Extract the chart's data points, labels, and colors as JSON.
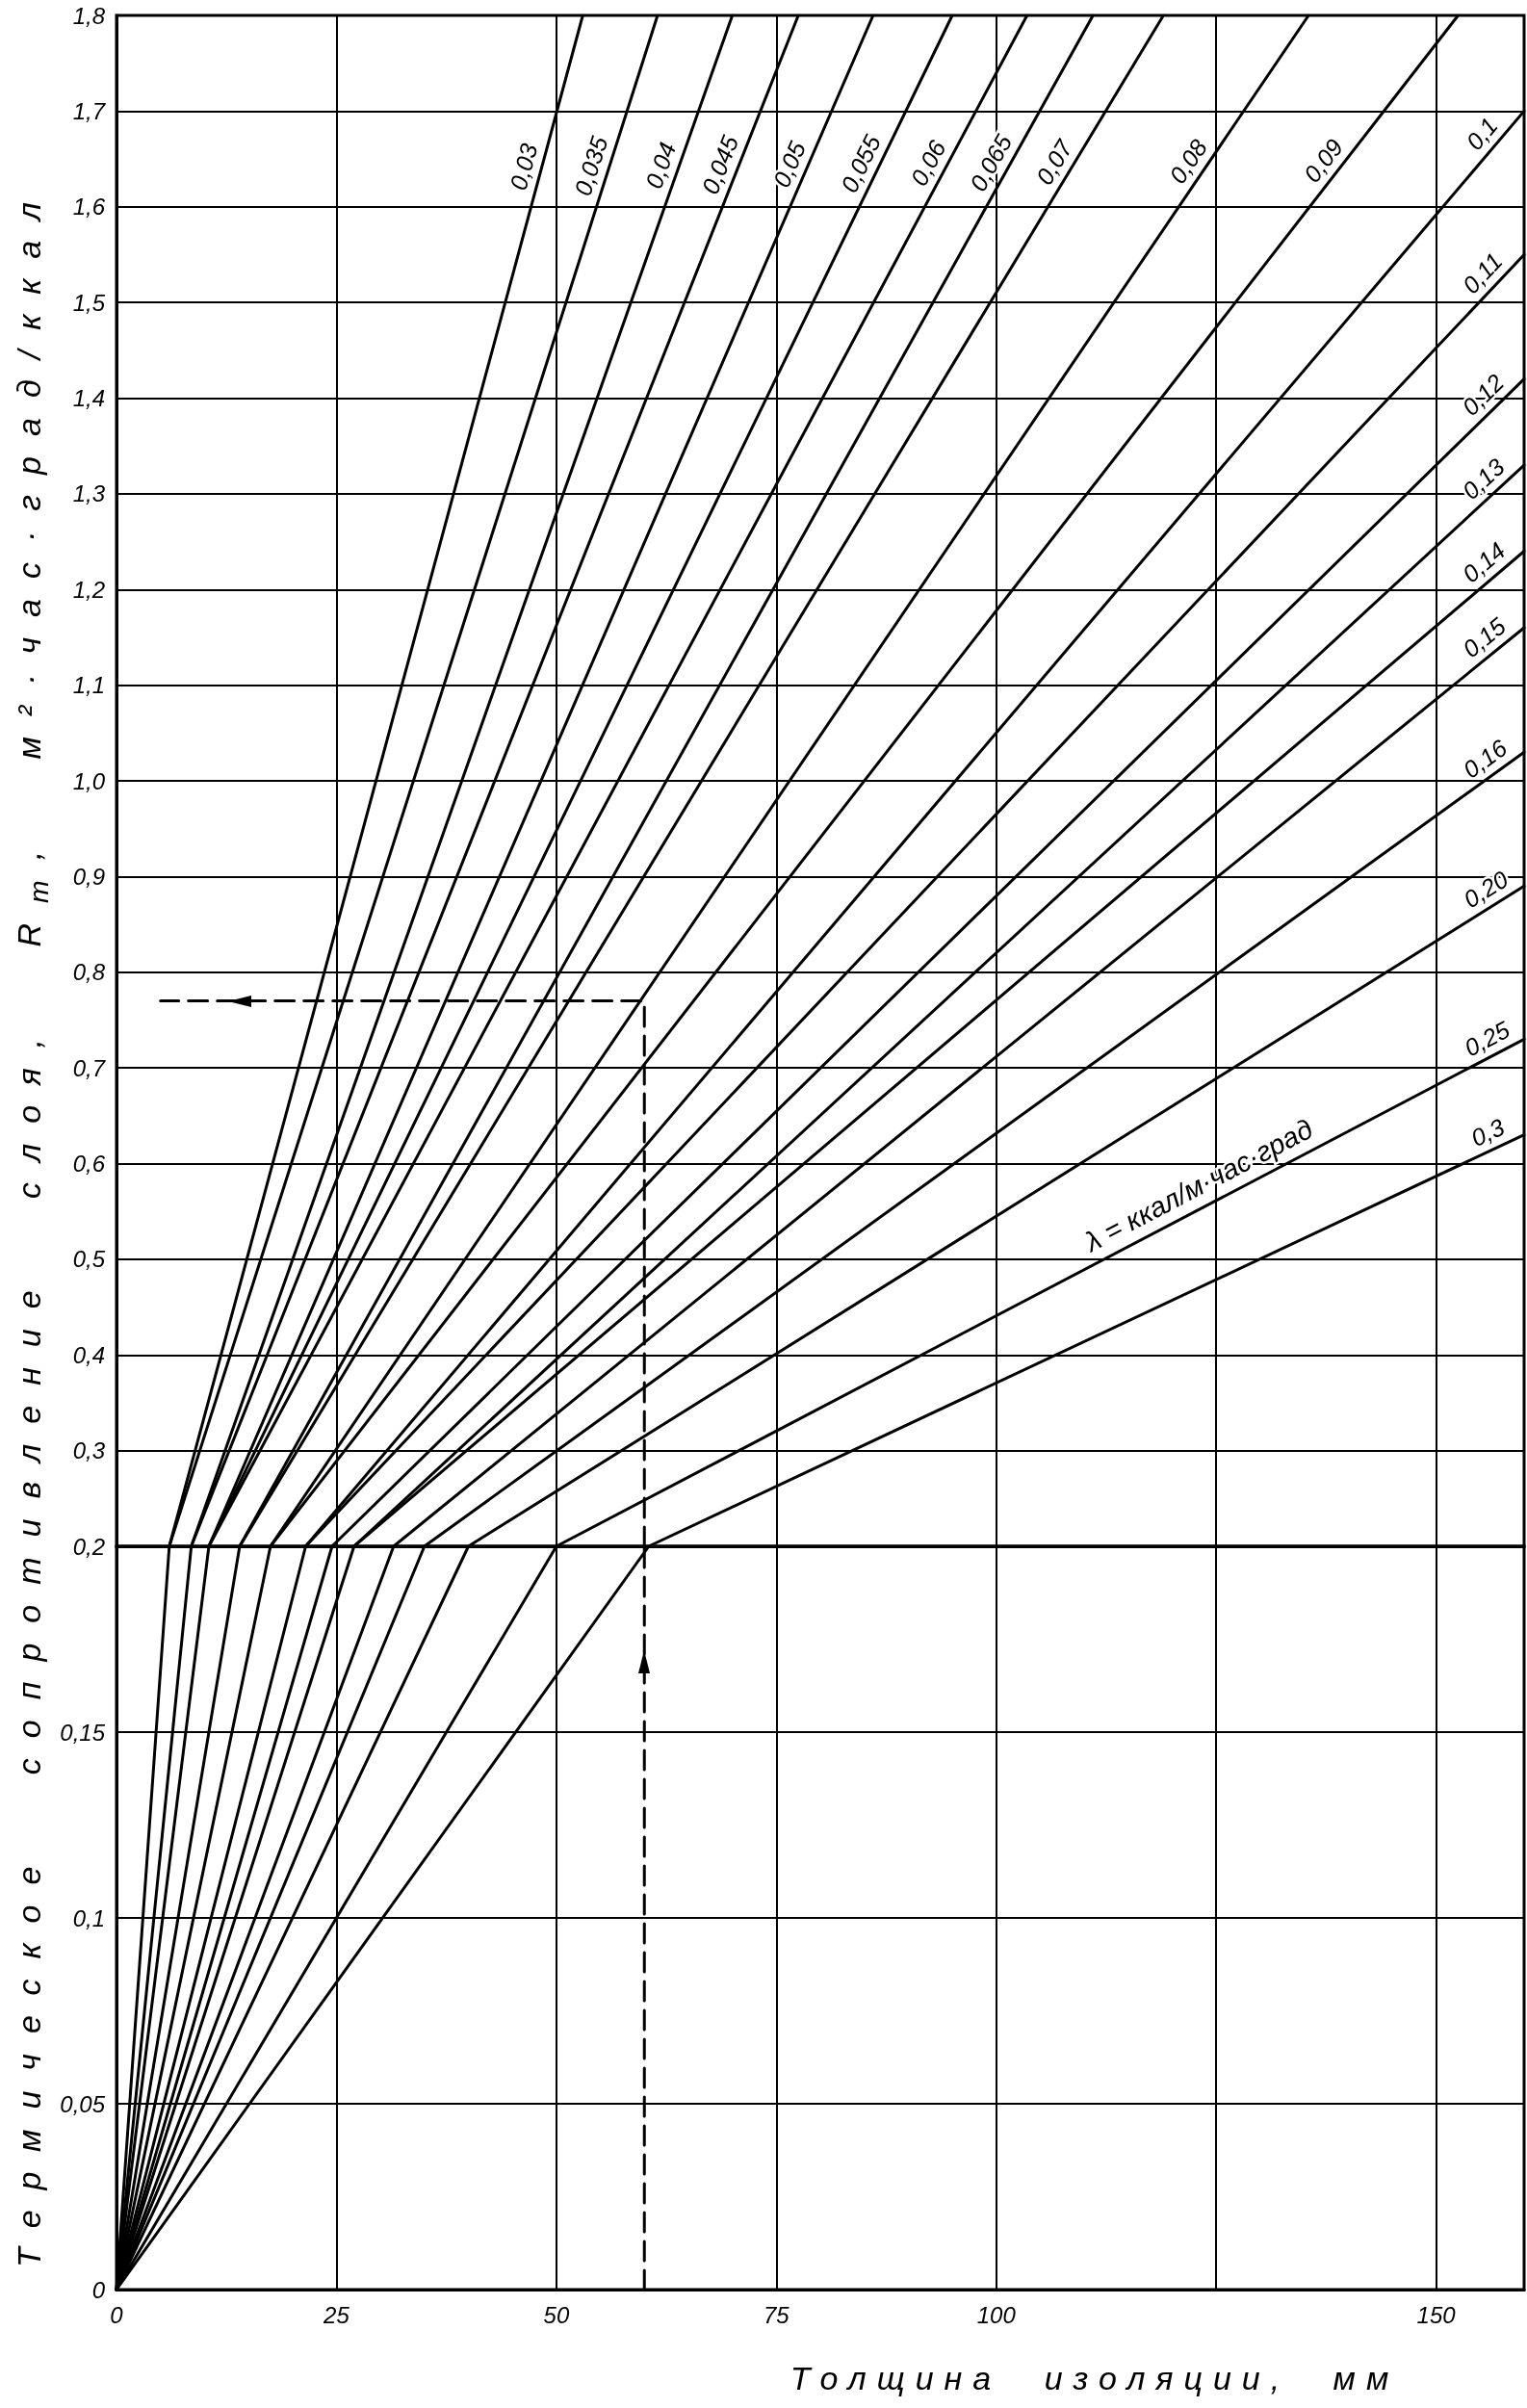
{
  "chart_data": [
    {
      "type": "line",
      "ylabel": "Термическое сопротивление слоя, R$_{т}$, м²·час·град/ккал",
      "annotations": [
        {
          "text": "λ = ккал/м·час·град",
          "x": 124,
          "y": 0.56
        }
      ],
      "series": [
        {
          "name": "0,03",
          "color": "#000000",
          "x": [
            6,
            53
          ],
          "values": [
            0.2,
            1.8
          ]
        },
        {
          "name": "0,035",
          "color": "#000000",
          "x": [
            6,
            61.5
          ],
          "values": [
            0.2,
            1.8
          ]
        },
        {
          "name": "0,04",
          "color": "#000000",
          "x": [
            8.5,
            70
          ],
          "values": [
            0.2,
            1.8
          ]
        },
        {
          "name": "0,045",
          "color": "#000000",
          "x": [
            8.5,
            77.5
          ],
          "values": [
            0.2,
            1.8
          ]
        },
        {
          "name": "0,05",
          "color": "#000000",
          "x": [
            10.5,
            86
          ],
          "values": [
            0.2,
            1.8
          ]
        },
        {
          "name": "0,055",
          "color": "#000000",
          "x": [
            10.5,
            95
          ],
          "values": [
            0.2,
            1.8
          ]
        },
        {
          "name": "0,06",
          "color": "#000000",
          "x": [
            10.5,
            103.5
          ],
          "values": [
            0.2,
            1.8
          ]
        },
        {
          "name": "0,065",
          "color": "#000000",
          "x": [
            14,
            111
          ],
          "values": [
            0.2,
            1.8
          ]
        },
        {
          "name": "0,07",
          "color": "#000000",
          "x": [
            14,
            119
          ],
          "values": [
            0.2,
            1.8
          ]
        },
        {
          "name": "0,08",
          "color": "#000000",
          "x": [
            17.5,
            135.5
          ],
          "values": [
            0.2,
            1.8
          ]
        },
        {
          "name": "0,09",
          "color": "#000000",
          "x": [
            17.5,
            152.5
          ],
          "values": [
            0.2,
            1.8
          ]
        },
        {
          "name": "0,1",
          "color": "#000000",
          "x": [
            21.5,
            160
          ],
          "values": [
            0.2,
            1.7
          ]
        },
        {
          "name": "0,11",
          "color": "#000000",
          "x": [
            21.5,
            160
          ],
          "values": [
            0.2,
            1.55
          ]
        },
        {
          "name": "0,12",
          "color": "#000000",
          "x": [
            24.5,
            160
          ],
          "values": [
            0.2,
            1.42
          ]
        },
        {
          "name": "0,13",
          "color": "#000000",
          "x": [
            27,
            160
          ],
          "values": [
            0.2,
            1.33
          ]
        },
        {
          "name": "0,14",
          "color": "#000000",
          "x": [
            27,
            160
          ],
          "values": [
            0.2,
            1.24
          ]
        },
        {
          "name": "0,15",
          "color": "#000000",
          "x": [
            31.5,
            160
          ],
          "values": [
            0.2,
            1.16
          ]
        },
        {
          "name": "0,16",
          "color": "#000000",
          "x": [
            35,
            160
          ],
          "values": [
            0.2,
            1.03
          ]
        },
        {
          "name": "0,20",
          "color": "#000000",
          "x": [
            40,
            160
          ],
          "values": [
            0.2,
            0.89
          ]
        },
        {
          "name": "0,25",
          "color": "#000000",
          "x": [
            50,
            160
          ],
          "values": [
            0.2,
            0.73
          ]
        },
        {
          "name": "0,3",
          "color": "#000000",
          "x": [
            60.5,
            160
          ],
          "values": [
            0.2,
            0.63
          ]
        },
        {
          "color": "#000000",
          "x": [
            60,
            60,
            5
          ],
          "values": [
            0.2,
            0.77,
            0.77
          ],
          "line_style": "dashed"
        }
      ],
      "xlim": [
        0,
        160
      ],
      "xticks": [
        0,
        25,
        50,
        75,
        100,
        {
          "value": 125,
          "label": null
        },
        150
      ],
      "ylim": [
        0.2,
        1.8
      ],
      "yticks": [
        {
          "value": 0.2,
          "label": "0,2"
        },
        {
          "value": 0.3,
          "label": "0,3"
        },
        {
          "value": 0.4,
          "label": "0,4"
        },
        {
          "value": 0.5,
          "label": "0,5"
        },
        {
          "value": 0.6,
          "label": "0,6"
        },
        {
          "value": 0.7,
          "label": "0,7"
        },
        {
          "value": 0.8,
          "label": "0,8"
        },
        {
          "value": 0.9,
          "label": "0,9"
        },
        {
          "value": 1.0,
          "label": "1,0"
        },
        {
          "value": 1.1,
          "label": "1,1"
        },
        {
          "value": 1.2,
          "label": "1,2"
        },
        {
          "value": 1.3,
          "label": "1,3"
        },
        {
          "value": 1.4,
          "label": "1,4"
        },
        {
          "value": 1.5,
          "label": "1,5"
        },
        {
          "value": 1.6,
          "label": "1,6"
        },
        {
          "value": 1.7,
          "label": "1,7"
        },
        {
          "value": 1.8,
          "label": "1,8"
        }
      ],
      "grid": true,
      "tick_labels": "y",
      "marker": "none",
      "line_style": "solid"
    },
    {
      "type": "line",
      "xlabel": "Толщина изоляции, мм",
      "series": [
        {
          "color": "#000000",
          "x": [
            0,
            6
          ],
          "values": [
            0,
            0.2
          ]
        },
        {
          "color": "#000000",
          "x": [
            0,
            8.5
          ],
          "values": [
            0,
            0.2
          ]
        },
        {
          "color": "#000000",
          "x": [
            0,
            10.5
          ],
          "values": [
            0,
            0.2
          ]
        },
        {
          "color": "#000000",
          "x": [
            0,
            14
          ],
          "values": [
            0,
            0.2
          ]
        },
        {
          "color": "#000000",
          "x": [
            0,
            17.5
          ],
          "values": [
            0,
            0.2
          ]
        },
        {
          "color": "#000000",
          "x": [
            0,
            21.5
          ],
          "values": [
            0,
            0.2
          ]
        },
        {
          "color": "#000000",
          "x": [
            0,
            24.5
          ],
          "values": [
            0,
            0.2
          ]
        },
        {
          "color": "#000000",
          "x": [
            0,
            27
          ],
          "values": [
            0,
            0.2
          ]
        },
        {
          "color": "#000000",
          "x": [
            0,
            31.5
          ],
          "values": [
            0,
            0.2
          ]
        },
        {
          "color": "#000000",
          "x": [
            0,
            35
          ],
          "values": [
            0,
            0.2
          ]
        },
        {
          "color": "#000000",
          "x": [
            0,
            40
          ],
          "values": [
            0,
            0.2
          ]
        },
        {
          "color": "#000000",
          "x": [
            0,
            50
          ],
          "values": [
            0,
            0.2
          ]
        },
        {
          "color": "#000000",
          "x": [
            0,
            60.5
          ],
          "values": [
            0,
            0.2
          ]
        },
        {
          "color": "#000000",
          "x": [
            60,
            60
          ],
          "values": [
            0,
            0.2
          ],
          "line_style": "dashed"
        }
      ],
      "xlim": [
        0,
        160
      ],
      "xticks": [
        0,
        25,
        50,
        75,
        100,
        {
          "value": 125,
          "label": null
        },
        150
      ],
      "ylim": [
        0,
        0.2
      ],
      "yticks": [
        0,
        {
          "value": 0.05,
          "label": "0,05"
        },
        {
          "value": 0.1,
          "label": "0,1"
        },
        {
          "value": 0.15,
          "label": "0,15"
        }
      ],
      "grid": true,
      "marker": "none",
      "line_style": "solid"
    }
  ]
}
